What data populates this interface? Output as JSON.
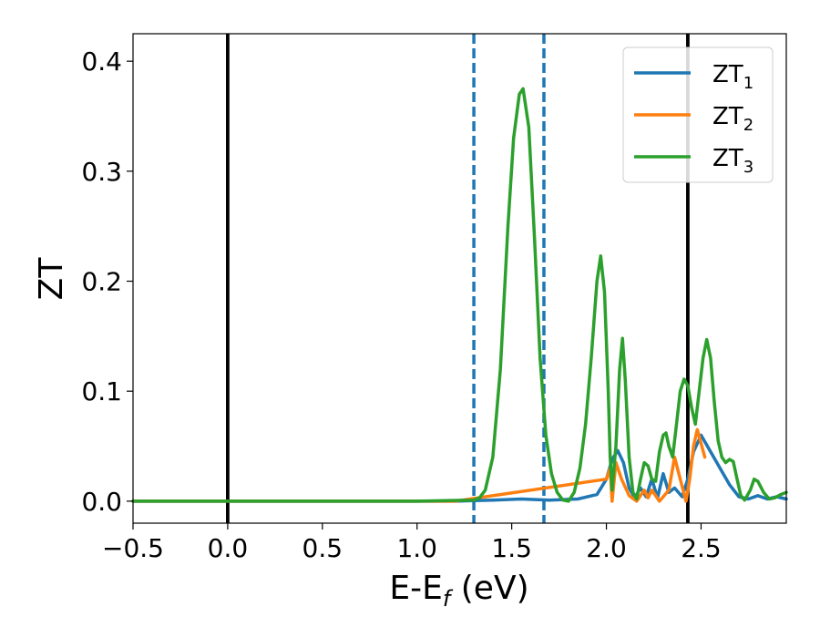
{
  "chart_data": {
    "type": "line",
    "xlabel": "E-E",
    "xlabel_sub": "f",
    "xlabel_unit": " (eV)",
    "ylabel": "ZT",
    "xlim": [
      -0.5,
      2.95
    ],
    "ylim": [
      -0.02,
      0.425
    ],
    "x_ticks": [
      -0.5,
      0.0,
      0.5,
      1.0,
      1.5,
      2.0,
      2.5
    ],
    "x_tick_labels": [
      "−0.5",
      "0.0",
      "0.5",
      "1.0",
      "1.5",
      "2.0",
      "2.5"
    ],
    "y_ticks": [
      0.0,
      0.1,
      0.2,
      0.3,
      0.4
    ],
    "y_tick_labels": [
      "0.0",
      "0.1",
      "0.2",
      "0.3",
      "0.4"
    ],
    "grid": false,
    "legend_position": "top-right",
    "vlines": [
      {
        "x": 0.0,
        "style": "solid",
        "color": "#000000"
      },
      {
        "x": 2.43,
        "style": "solid",
        "color": "#000000"
      },
      {
        "x": 1.3,
        "style": "dashed",
        "color": "#1f77b4"
      },
      {
        "x": 1.67,
        "style": "dashed",
        "color": "#1f77b4"
      }
    ],
    "series": [
      {
        "name": "ZT",
        "sub": "1",
        "color": "#1f77b4",
        "x": [
          -0.5,
          1.2,
          1.3,
          1.4,
          1.55,
          1.7,
          1.85,
          1.95,
          2.0,
          2.03,
          2.06,
          2.09,
          2.12,
          2.15,
          2.18,
          2.21,
          2.24,
          2.27,
          2.3,
          2.33,
          2.36,
          2.4,
          2.43,
          2.46,
          2.5,
          2.55,
          2.6,
          2.65,
          2.7,
          2.75,
          2.8,
          2.85,
          2.9,
          2.95
        ],
        "y": [
          0.0,
          0.0,
          0.0005,
          0.001,
          0.002,
          0.001,
          0.002,
          0.006,
          0.02,
          0.038,
          0.046,
          0.035,
          0.012,
          0.003,
          0.012,
          0.004,
          0.02,
          0.003,
          0.025,
          0.008,
          0.012,
          0.004,
          0.02,
          0.045,
          0.06,
          0.045,
          0.03,
          0.015,
          0.004,
          0.002,
          0.005,
          0.002,
          0.004,
          0.002
        ]
      },
      {
        "name": "ZT",
        "sub": "2",
        "color": "#ff7f0e",
        "x": [
          -0.5,
          1.2,
          2.0,
          2.02,
          2.03,
          2.05,
          2.08,
          2.12,
          2.16,
          2.2,
          2.22,
          2.24,
          2.28,
          2.33,
          2.36,
          2.39,
          2.42,
          2.44,
          2.46,
          2.48,
          2.52
        ],
        "y": [
          0.0,
          0.0,
          0.02,
          0.03,
          0.0,
          0.035,
          0.02,
          0.005,
          0.0,
          0.01,
          0.003,
          0.01,
          0.0,
          0.01,
          0.04,
          0.02,
          0.0,
          0.02,
          0.05,
          0.065,
          0.04
        ]
      },
      {
        "name": "ZT",
        "sub": "3",
        "color": "#2ca02c",
        "x": [
          -0.5,
          0.0,
          1.0,
          1.3,
          1.33,
          1.36,
          1.4,
          1.44,
          1.48,
          1.51,
          1.54,
          1.56,
          1.59,
          1.62,
          1.65,
          1.68,
          1.71,
          1.74,
          1.77,
          1.8,
          1.83,
          1.86,
          1.89,
          1.92,
          1.95,
          1.97,
          1.99,
          2.01,
          2.02,
          2.03,
          2.05,
          2.07,
          2.085,
          2.1,
          2.12,
          2.14,
          2.16,
          2.18,
          2.2,
          2.22,
          2.24,
          2.26,
          2.28,
          2.3,
          2.315,
          2.33,
          2.35,
          2.37,
          2.39,
          2.41,
          2.43,
          2.45,
          2.47,
          2.49,
          2.51,
          2.53,
          2.55,
          2.57,
          2.59,
          2.61,
          2.63,
          2.65,
          2.67,
          2.69,
          2.71,
          2.73,
          2.76,
          2.78,
          2.8,
          2.83,
          2.86,
          2.89,
          2.92,
          2.95
        ],
        "y": [
          0.0,
          0.0,
          0.0,
          0.001,
          0.003,
          0.01,
          0.04,
          0.12,
          0.25,
          0.33,
          0.37,
          0.375,
          0.34,
          0.24,
          0.13,
          0.06,
          0.025,
          0.008,
          0.001,
          0.0,
          0.008,
          0.03,
          0.07,
          0.13,
          0.2,
          0.223,
          0.19,
          0.1,
          0.04,
          0.01,
          0.05,
          0.12,
          0.148,
          0.11,
          0.04,
          0.008,
          0.002,
          0.02,
          0.035,
          0.032,
          0.02,
          0.018,
          0.045,
          0.06,
          0.062,
          0.05,
          0.04,
          0.07,
          0.1,
          0.111,
          0.105,
          0.085,
          0.07,
          0.1,
          0.13,
          0.147,
          0.13,
          0.09,
          0.055,
          0.04,
          0.035,
          0.038,
          0.036,
          0.02,
          0.005,
          0.001,
          0.01,
          0.02,
          0.018,
          0.008,
          0.002,
          0.003,
          0.006,
          0.008
        ]
      }
    ]
  }
}
